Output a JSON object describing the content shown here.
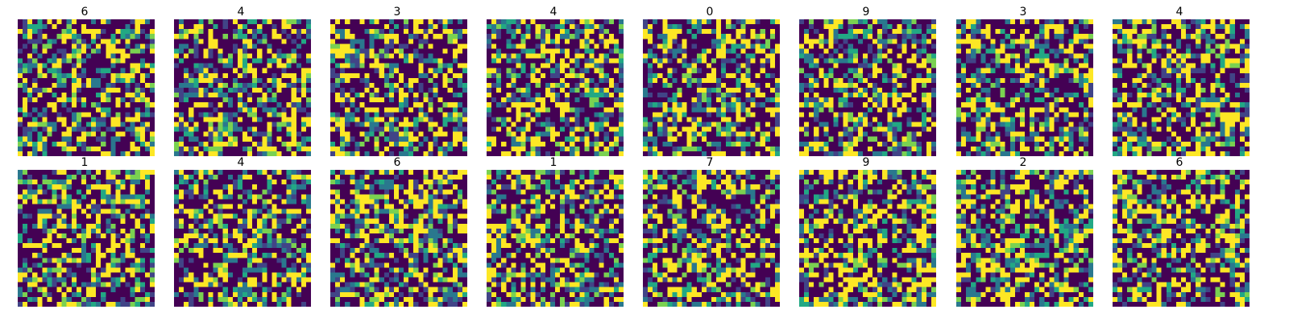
{
  "chart_data": {
    "type": "heatmap",
    "layout": {
      "rows": 2,
      "cols": 8
    },
    "grid_size": 28,
    "levels": 6,
    "colormap": "viridis",
    "axes_visible": false,
    "palette": [
      "#440154",
      "#414487",
      "#2a788e",
      "#22a884",
      "#7ad151",
      "#fde725"
    ],
    "panels": [
      {
        "label": "6",
        "seed": 101
      },
      {
        "label": "4",
        "seed": 202
      },
      {
        "label": "3",
        "seed": 303
      },
      {
        "label": "4",
        "seed": 404
      },
      {
        "label": "0",
        "seed": 505
      },
      {
        "label": "9",
        "seed": 606
      },
      {
        "label": "3",
        "seed": 707
      },
      {
        "label": "4",
        "seed": 808
      },
      {
        "label": "1",
        "seed": 909
      },
      {
        "label": "4",
        "seed": 1010
      },
      {
        "label": "6",
        "seed": 1111
      },
      {
        "label": "1",
        "seed": 1212
      },
      {
        "label": "7",
        "seed": 1313
      },
      {
        "label": "9",
        "seed": 1414
      },
      {
        "label": "2",
        "seed": 1515
      },
      {
        "label": "6",
        "seed": 1616
      }
    ]
  }
}
